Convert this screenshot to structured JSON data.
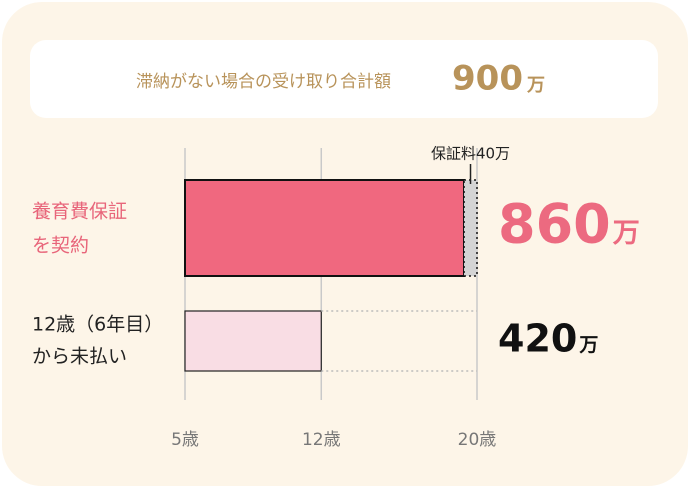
{
  "header": {
    "label": "滞納がない場合の受け取り合計額",
    "amount": "900",
    "unit": "万"
  },
  "chart_data": {
    "type": "bar",
    "orientation": "horizontal",
    "stacked": true,
    "categories": [
      [
        "養育費保証",
        "を契約"
      ],
      [
        "12歳（6年目）",
        "から未払い"
      ]
    ],
    "category_colors": [
      "#e8657a",
      "#222222"
    ],
    "series": [
      {
        "colors": [
          "#f0687f",
          "#f9dde4"
        ],
        "values": [
          860,
          420
        ]
      },
      {
        "colors": [
          "#d4d4d4",
          null
        ],
        "values": [
          40,
          null
        ]
      }
    ],
    "value_unit": "万",
    "value_label_colors": [
      "#ec6a80",
      "#111111"
    ],
    "annotation": "保証料40万",
    "xlim": [
      0,
      900
    ],
    "xticks": [
      {
        "value": 0,
        "label": "5歳"
      },
      {
        "value": 420,
        "label": "12歳"
      },
      {
        "value": 900,
        "label": "20歳"
      }
    ],
    "grid": true
  }
}
